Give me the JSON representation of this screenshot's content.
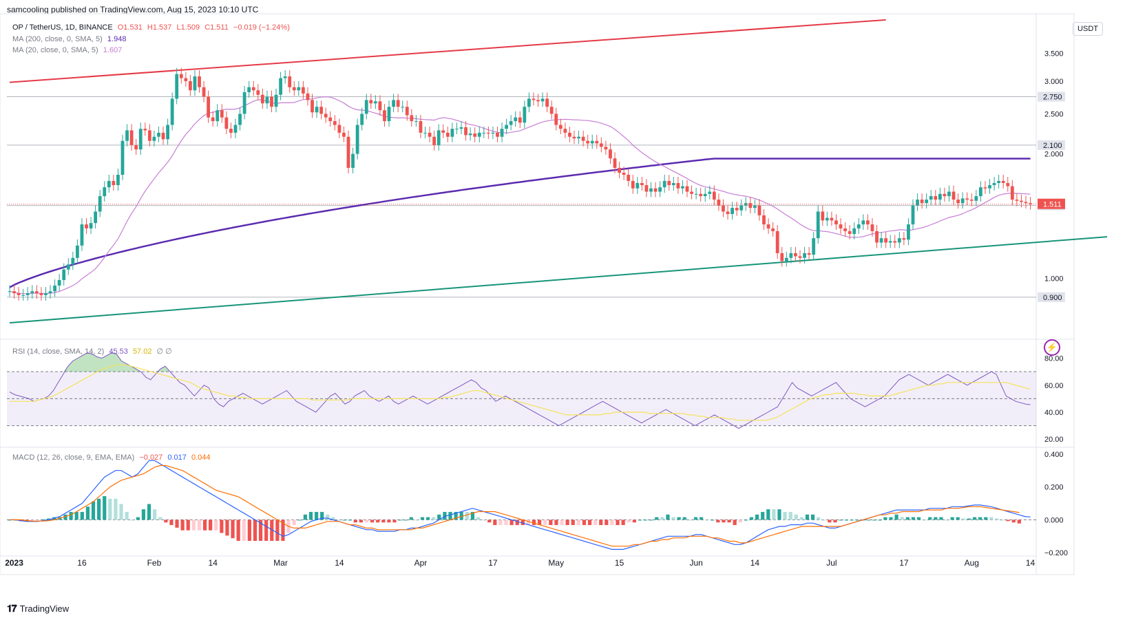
{
  "header": {
    "published": "samcooling published on TradingView.com, Aug 15, 2023 10:10 UTC",
    "currency_button": "USDT"
  },
  "price_legend": {
    "symbol": "OP / TetherUS, 1D, BINANCE",
    "o": "O1.531",
    "h": "H1.537",
    "l": "L1.509",
    "c": "C1.511",
    "chg": "−0.019 (−1.24%)"
  },
  "ma_legends": {
    "ma200": {
      "label": "MA (200, close, 0, SMA, 5)",
      "value": "1.948"
    },
    "ma20": {
      "label": "MA (20, close, 0, SMA, 5)",
      "value": "1.607"
    }
  },
  "rsi_legend": {
    "label": "RSI (14, close, SMA, 14, 2)",
    "v1": "45.53",
    "v2": "57.02",
    "v3": "∅ ∅"
  },
  "macd_legend": {
    "label": "MACD (12, 26, close, 9, EMA, EMA)",
    "v1": "−0.027",
    "v2": "0.017",
    "v3": "0.044"
  },
  "footer": {
    "brand": "TradingView"
  },
  "colors": {
    "up": "#26a69a",
    "down": "#ef5350",
    "ma200": "#5b2bb0",
    "ma20": "#c77dd4",
    "res_line": "#e53946",
    "sup_line": "#16947a",
    "rsi": "#7e57c2",
    "rsi_ma": "#f5e25a",
    "macd": "#2962ff",
    "signal": "#ff6d00"
  },
  "chart_data": [
    {
      "type": "candlestick",
      "title": "OP / TetherUS, 1D, BINANCE",
      "y_scale": "log",
      "y_axis_ticks": [
        "3.500",
        "3.000",
        "2.500",
        "2.000",
        "1.000"
      ],
      "horizontal_levels": [
        "2.750",
        "2.100",
        "1.500",
        "0.900"
      ],
      "last_price_label": "1.511",
      "x_axis_labels": [
        "2023",
        "16",
        "Feb",
        "14",
        "Mar",
        "14",
        "Apr",
        "17",
        "May",
        "15",
        "Jun",
        "14",
        "Jul",
        "17",
        "Aug",
        "14"
      ],
      "x_axis_label_dates": [
        "2023-01-01",
        "2023-01-16",
        "2023-02-01",
        "2023-02-14",
        "2023-03-01",
        "2023-03-14",
        "2023-04-01",
        "2023-04-17",
        "2023-05-01",
        "2023-05-15",
        "2023-06-01",
        "2023-06-14",
        "2023-07-01",
        "2023-07-17",
        "2023-08-01",
        "2023-08-14"
      ],
      "close_series_start": "2022-12-31",
      "close": [
        0.93,
        0.92,
        0.91,
        0.91,
        0.92,
        0.93,
        0.92,
        0.91,
        0.92,
        0.93,
        0.96,
        0.99,
        1.05,
        1.08,
        1.12,
        1.2,
        1.35,
        1.32,
        1.36,
        1.45,
        1.58,
        1.66,
        1.72,
        1.68,
        1.78,
        2.15,
        2.28,
        2.1,
        2.05,
        2.3,
        2.28,
        2.15,
        2.2,
        2.25,
        2.17,
        2.35,
        2.72,
        3.12,
        3.05,
        3.0,
        2.85,
        3.08,
        2.9,
        2.75,
        2.45,
        2.4,
        2.55,
        2.45,
        2.3,
        2.25,
        2.35,
        2.5,
        2.82,
        2.9,
        2.85,
        2.78,
        2.65,
        2.75,
        2.6,
        2.78,
        3.05,
        3.08,
        2.9,
        2.85,
        2.9,
        2.8,
        2.7,
        2.52,
        2.6,
        2.5,
        2.45,
        2.4,
        2.35,
        2.25,
        2.2,
        1.85,
        2.0,
        2.35,
        2.5,
        2.7,
        2.65,
        2.68,
        2.55,
        2.4,
        2.6,
        2.7,
        2.6,
        2.6,
        2.48,
        2.4,
        2.4,
        2.25,
        2.25,
        2.2,
        2.1,
        2.28,
        2.25,
        2.2,
        2.3,
        2.3,
        2.32,
        2.22,
        2.24,
        2.2,
        2.25,
        2.25,
        2.24,
        2.25,
        2.2,
        2.3,
        2.35,
        2.4,
        2.45,
        2.38,
        2.6,
        2.72,
        2.7,
        2.68,
        2.72,
        2.6,
        2.5,
        2.35,
        2.3,
        2.25,
        2.2,
        2.18,
        2.2,
        2.15,
        2.12,
        2.15,
        2.12,
        2.08,
        2.05,
        1.95,
        1.85,
        1.8,
        1.78,
        1.72,
        1.65,
        1.7,
        1.68,
        1.62,
        1.65,
        1.62,
        1.66,
        1.72,
        1.68,
        1.7,
        1.65,
        1.67,
        1.62,
        1.6,
        1.6,
        1.58,
        1.6,
        1.62,
        1.55,
        1.5,
        1.45,
        1.43,
        1.48,
        1.46,
        1.5,
        1.52,
        1.48,
        1.5,
        1.42,
        1.35,
        1.32,
        1.3,
        1.15,
        1.1,
        1.12,
        1.15,
        1.13,
        1.12,
        1.15,
        1.14,
        1.25,
        1.45,
        1.38,
        1.4,
        1.38,
        1.35,
        1.32,
        1.3,
        1.28,
        1.32,
        1.35,
        1.38,
        1.35,
        1.3,
        1.22,
        1.25,
        1.22,
        1.23,
        1.22,
        1.25,
        1.24,
        1.35,
        1.5,
        1.55,
        1.52,
        1.55,
        1.58,
        1.55,
        1.6,
        1.58,
        1.62,
        1.55,
        1.52,
        1.56,
        1.55,
        1.54,
        1.58,
        1.66,
        1.65,
        1.68,
        1.7,
        1.72,
        1.7,
        1.67,
        1.55,
        1.54,
        1.53,
        1.52,
        1.511
      ],
      "ma200": {
        "label": "MA (200, close, 0, SMA, 5)",
        "last": 1.948
      },
      "ma20": {
        "label": "MA (20, close, 0, SMA, 5)",
        "last": 1.607
      },
      "resistance_trendline": [
        [
          "2022-12-31",
          2.98
        ],
        [
          "2023-07-13",
          4.22
        ]
      ],
      "support_trendline": [
        [
          "2022-12-31",
          0.78
        ],
        [
          "2023-08-31",
          1.26
        ]
      ]
    },
    {
      "type": "line",
      "title": "RSI (14, close, SMA, 14, 2)",
      "y_axis_ticks": [
        "80.00",
        "60.00",
        "40.00",
        "20.00"
      ],
      "band": [
        30,
        70
      ],
      "rsi_last": 45.53,
      "rsi_ma_last": 57.02,
      "rsi": [
        55,
        53,
        52,
        51,
        50,
        48,
        49,
        50,
        52,
        56,
        62,
        68,
        74,
        78,
        80,
        82,
        84,
        83,
        81,
        80,
        82,
        84,
        83,
        78,
        76,
        74,
        72,
        70,
        66,
        64,
        68,
        72,
        74,
        70,
        66,
        62,
        60,
        56,
        52,
        56,
        60,
        58,
        50,
        46,
        44,
        48,
        50,
        52,
        54,
        52,
        50,
        48,
        46,
        48,
        50,
        52,
        54,
        56,
        52,
        48,
        46,
        44,
        42,
        40,
        44,
        48,
        52,
        54,
        50,
        46,
        48,
        52,
        54,
        56,
        52,
        50,
        48,
        50,
        52,
        48,
        46,
        48,
        50,
        52,
        50,
        48,
        46,
        48,
        50,
        52,
        54,
        56,
        58,
        60,
        62,
        64,
        62,
        58,
        56,
        52,
        48,
        50,
        52,
        50,
        48,
        46,
        44,
        42,
        40,
        38,
        36,
        34,
        32,
        30,
        32,
        34,
        36,
        38,
        40,
        42,
        44,
        46,
        48,
        46,
        44,
        42,
        40,
        38,
        36,
        34,
        32,
        34,
        36,
        38,
        40,
        42,
        40,
        38,
        36,
        34,
        32,
        30,
        32,
        34,
        36,
        38,
        36,
        34,
        32,
        30,
        28,
        30,
        32,
        34,
        36,
        38,
        40,
        42,
        44,
        50,
        56,
        62,
        58,
        56,
        54,
        52,
        54,
        56,
        58,
        60,
        62,
        58,
        54,
        50,
        48,
        46,
        44,
        46,
        48,
        50,
        52,
        56,
        60,
        64,
        66,
        68,
        66,
        64,
        62,
        60,
        62,
        64,
        66,
        68,
        66,
        64,
        62,
        60,
        62,
        64,
        66,
        68,
        70,
        68,
        60,
        52,
        50,
        48,
        47,
        46,
        45.53
      ],
      "rsi_ma": [
        48,
        48,
        48,
        48,
        48,
        48,
        49,
        50,
        51,
        52,
        54,
        56,
        58,
        60,
        62,
        64,
        66,
        68,
        70,
        72,
        73,
        74,
        75,
        75,
        75,
        74,
        73,
        72,
        71,
        70,
        69,
        68,
        67,
        66,
        65,
        64,
        63,
        62,
        60,
        58,
        57,
        56,
        55,
        54,
        53,
        52,
        52,
        51,
        51,
        50,
        50,
        50,
        50,
        50,
        50,
        50,
        50,
        50,
        50,
        50,
        50,
        50,
        49,
        49,
        49,
        49,
        49,
        49,
        49,
        49,
        50,
        50,
        50,
        50,
        50,
        50,
        50,
        50,
        50,
        50,
        50,
        50,
        50,
        50,
        50,
        50,
        50,
        50,
        50,
        51,
        51,
        52,
        53,
        54,
        55,
        56,
        56,
        55,
        54,
        53,
        52,
        51,
        50,
        49,
        48,
        47,
        46,
        45,
        44,
        43,
        42,
        41,
        40,
        39,
        38,
        38,
        38,
        38,
        38,
        38,
        38,
        38,
        39,
        39,
        40,
        40,
        40,
        40,
        40,
        40,
        40,
        39,
        39,
        39,
        39,
        39,
        39,
        39,
        39,
        38,
        38,
        37,
        37,
        36,
        36,
        36,
        36,
        35,
        35,
        34,
        34,
        34,
        34,
        34,
        34,
        34,
        35,
        36,
        38,
        40,
        42,
        44,
        46,
        48,
        50,
        51,
        52,
        53,
        53,
        54,
        54,
        54,
        54,
        54,
        53,
        53,
        52,
        52,
        52,
        52,
        52,
        53,
        54,
        55,
        56,
        57,
        58,
        59,
        60,
        60,
        61,
        61,
        62,
        62,
        62,
        62,
        62,
        62,
        62,
        62,
        62,
        62,
        62,
        62,
        62,
        61,
        60,
        59,
        58,
        57.02
      ]
    },
    {
      "type": "line",
      "title": "MACD (12, 26, close, 9, EMA, EMA)",
      "y_axis_ticks": [
        "0.400",
        "0.200",
        "0.000",
        "−0.200"
      ],
      "ylim": [
        -0.22,
        0.42
      ],
      "histogram_last": -0.027,
      "macd_last": 0.017,
      "signal_last": 0.044,
      "macd": [
        0,
        0,
        -0.005,
        -0.01,
        -0.01,
        -0.01,
        -0.005,
        0,
        0.01,
        0.02,
        0.04,
        0.06,
        0.08,
        0.1,
        0.14,
        0.18,
        0.22,
        0.26,
        0.28,
        0.3,
        0.3,
        0.28,
        0.26,
        0.28,
        0.32,
        0.36,
        0.36,
        0.34,
        0.32,
        0.3,
        0.28,
        0.26,
        0.24,
        0.22,
        0.2,
        0.18,
        0.16,
        0.14,
        0.12,
        0.1,
        0.08,
        0.06,
        0.04,
        0.02,
        0,
        -0.02,
        -0.04,
        -0.06,
        -0.08,
        -0.1,
        -0.09,
        -0.07,
        -0.05,
        -0.03,
        -0.01,
        0,
        0.01,
        0.01,
        0,
        -0.01,
        -0.02,
        -0.03,
        -0.04,
        -0.05,
        -0.06,
        -0.06,
        -0.07,
        -0.07,
        -0.07,
        -0.07,
        -0.06,
        -0.06,
        -0.05,
        -0.05,
        -0.04,
        -0.03,
        -0.02,
        0,
        0.02,
        0.03,
        0.04,
        0.05,
        0.06,
        0.07,
        0.06,
        0.05,
        0.04,
        0.03,
        0.02,
        0.01,
        0,
        -0.01,
        -0.02,
        -0.03,
        -0.04,
        -0.05,
        -0.06,
        -0.07,
        -0.08,
        -0.09,
        -0.1,
        -0.11,
        -0.12,
        -0.13,
        -0.14,
        -0.15,
        -0.16,
        -0.17,
        -0.18,
        -0.18,
        -0.18,
        -0.17,
        -0.16,
        -0.15,
        -0.14,
        -0.13,
        -0.12,
        -0.11,
        -0.1,
        -0.1,
        -0.1,
        -0.1,
        -0.1,
        -0.09,
        -0.09,
        -0.1,
        -0.11,
        -0.12,
        -0.13,
        -0.14,
        -0.15,
        -0.15,
        -0.14,
        -0.12,
        -0.1,
        -0.08,
        -0.06,
        -0.05,
        -0.04,
        -0.04,
        -0.03,
        -0.03,
        -0.03,
        -0.02,
        -0.02,
        -0.03,
        -0.04,
        -0.05,
        -0.05,
        -0.04,
        -0.03,
        -0.02,
        -0.01,
        0,
        0.01,
        0.02,
        0.03,
        0.04,
        0.05,
        0.06,
        0.06,
        0.06,
        0.06,
        0.06,
        0.06,
        0.07,
        0.07,
        0.07,
        0.07,
        0.08,
        0.08,
        0.08,
        0.085,
        0.09,
        0.09,
        0.085,
        0.08,
        0.07,
        0.06,
        0.05,
        0.04,
        0.03,
        0.02,
        0.017
      ],
      "signal": [
        0,
        0,
        0,
        -0.005,
        -0.007,
        -0.008,
        -0.007,
        -0.005,
        0,
        0.01,
        0.02,
        0.03,
        0.05,
        0.07,
        0.09,
        0.11,
        0.14,
        0.17,
        0.2,
        0.22,
        0.24,
        0.25,
        0.26,
        0.27,
        0.28,
        0.3,
        0.32,
        0.33,
        0.33,
        0.32,
        0.31,
        0.3,
        0.28,
        0.26,
        0.24,
        0.22,
        0.2,
        0.18,
        0.17,
        0.16,
        0.15,
        0.14,
        0.12,
        0.1,
        0.08,
        0.06,
        0.04,
        0.02,
        0,
        -0.02,
        -0.04,
        -0.05,
        -0.05,
        -0.05,
        -0.04,
        -0.03,
        -0.02,
        -0.01,
        -0.01,
        -0.01,
        -0.02,
        -0.03,
        -0.03,
        -0.04,
        -0.05,
        -0.05,
        -0.06,
        -0.06,
        -0.06,
        -0.06,
        -0.06,
        -0.06,
        -0.06,
        -0.05,
        -0.05,
        -0.04,
        -0.03,
        -0.02,
        -0.01,
        0,
        0.01,
        0.02,
        0.03,
        0.04,
        0.05,
        0.05,
        0.05,
        0.05,
        0.04,
        0.03,
        0.02,
        0.01,
        0,
        -0.01,
        -0.02,
        -0.03,
        -0.04,
        -0.05,
        -0.06,
        -0.07,
        -0.08,
        -0.09,
        -0.1,
        -0.11,
        -0.12,
        -0.13,
        -0.14,
        -0.15,
        -0.16,
        -0.16,
        -0.16,
        -0.16,
        -0.15,
        -0.15,
        -0.14,
        -0.13,
        -0.13,
        -0.12,
        -0.12,
        -0.11,
        -0.11,
        -0.11,
        -0.1,
        -0.1,
        -0.1,
        -0.1,
        -0.11,
        -0.11,
        -0.12,
        -0.13,
        -0.13,
        -0.14,
        -0.14,
        -0.13,
        -0.12,
        -0.11,
        -0.1,
        -0.09,
        -0.08,
        -0.07,
        -0.06,
        -0.05,
        -0.04,
        -0.04,
        -0.04,
        -0.04,
        -0.04,
        -0.04,
        -0.04,
        -0.04,
        -0.03,
        -0.02,
        -0.01,
        0,
        0.01,
        0.02,
        0.03,
        0.03,
        0.04,
        0.04,
        0.05,
        0.05,
        0.05,
        0.05,
        0.06,
        0.06,
        0.06,
        0.06,
        0.07,
        0.07,
        0.07,
        0.075,
        0.08,
        0.08,
        0.08,
        0.075,
        0.07,
        0.065,
        0.06,
        0.055,
        0.05,
        0.044
      ]
    }
  ]
}
